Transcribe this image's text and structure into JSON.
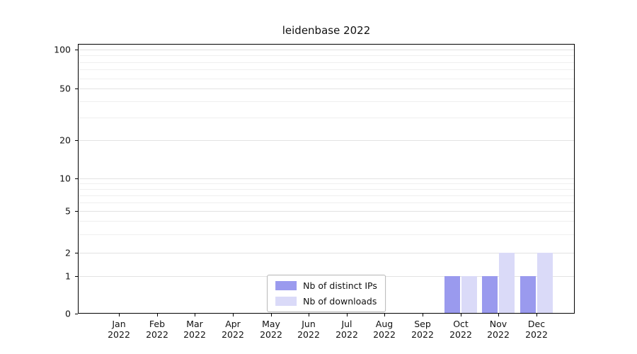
{
  "chart_data": {
    "type": "bar",
    "title": "leidenbase 2022",
    "categories": [
      "Jan",
      "Feb",
      "Mar",
      "Apr",
      "May",
      "Jun",
      "Jul",
      "Aug",
      "Sep",
      "Oct",
      "Nov",
      "Dec"
    ],
    "category_year": "2022",
    "series": [
      {
        "name": "Nb of distinct IPs",
        "color": "#9a9aee",
        "values": [
          0,
          0,
          0,
          0,
          0,
          0,
          0,
          0,
          0,
          1,
          1,
          1
        ]
      },
      {
        "name": "Nb of downloads",
        "color": "#dadaf8",
        "values": [
          0,
          0,
          0,
          0,
          0,
          0,
          0,
          0,
          0,
          1,
          2,
          2
        ]
      }
    ],
    "y_axis": {
      "scale": "symlog",
      "major_ticks": [
        0,
        1,
        2,
        5,
        10,
        20,
        50,
        100
      ],
      "minor_ticks": [
        3,
        4,
        6,
        7,
        8,
        9,
        30,
        40,
        60,
        70,
        80,
        90
      ],
      "range": [
        0,
        100
      ]
    },
    "x_axis": {
      "label_format": "month + year"
    },
    "legend": {
      "position": "lower center",
      "entries": [
        "Nb of distinct IPs",
        "Nb of downloads"
      ]
    },
    "grid": "horizontal",
    "colors": {
      "frame": "#000000",
      "grid_major": "#e2e2e2",
      "grid_minor": "#efefef"
    }
  }
}
